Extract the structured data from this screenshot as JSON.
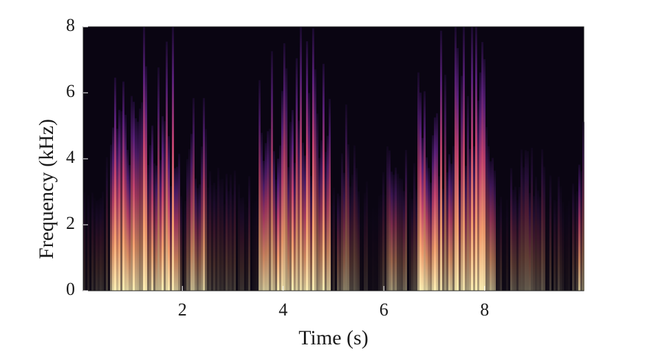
{
  "chart_data": {
    "type": "spectrogram",
    "xlabel": "Time (s)",
    "ylabel": "Frequency (kHz)",
    "xlim": [
      0.03,
      9.97
    ],
    "ylim": [
      0,
      8
    ],
    "xticks": [
      2,
      4,
      6,
      8
    ],
    "yticks": [
      0,
      2,
      4,
      6,
      8
    ]
  }
}
